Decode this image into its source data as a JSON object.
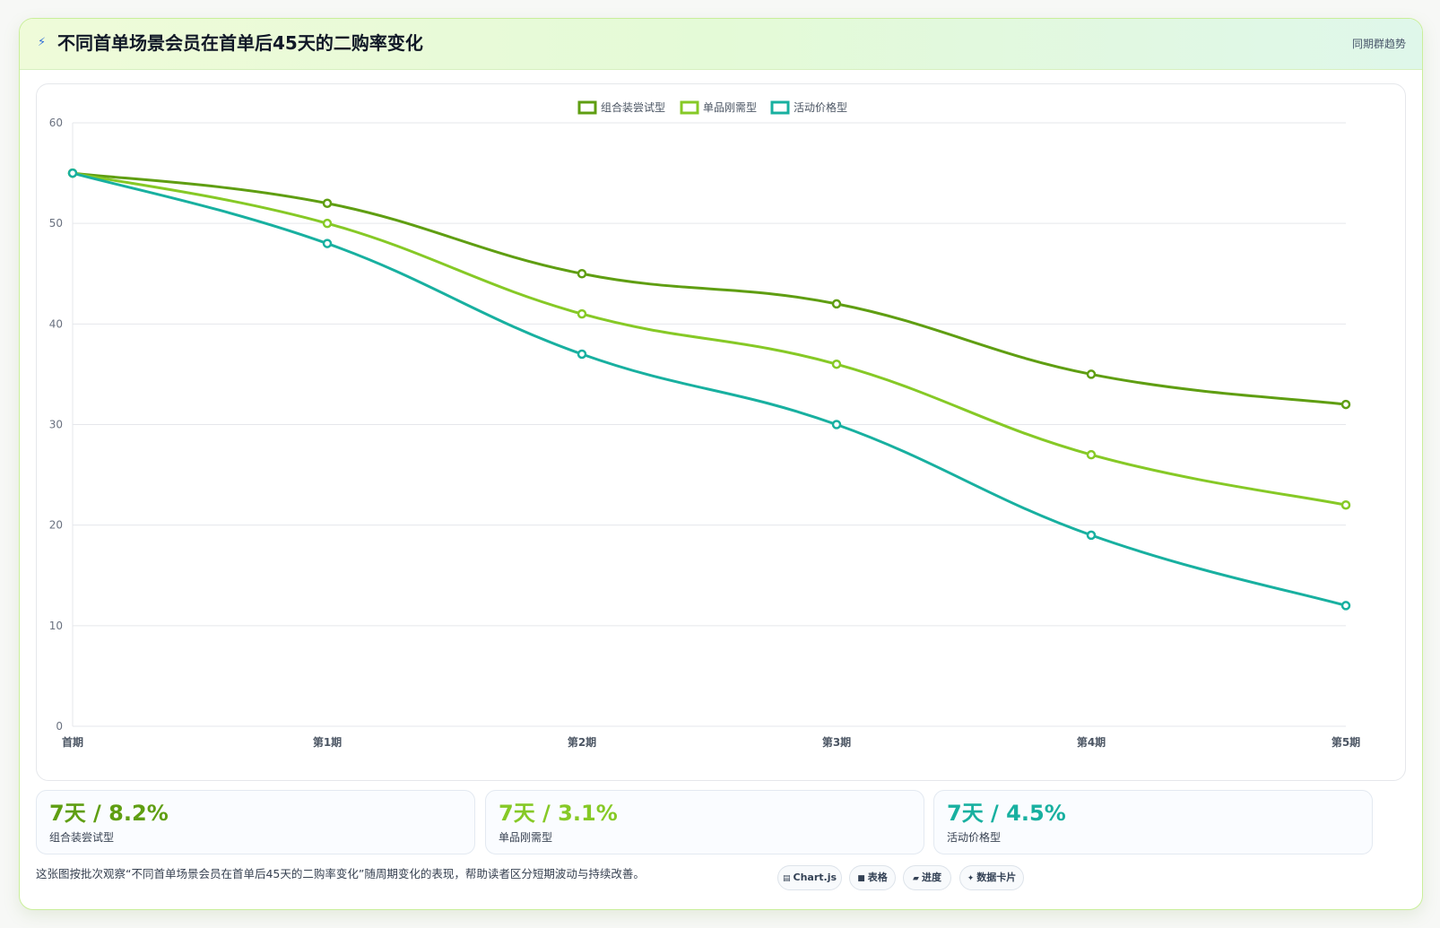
{
  "header": {
    "icon": "lightning-icon",
    "title": "不同首单场景会员在首单后45天的二购率变化",
    "tag": "同期群趋势"
  },
  "colors": {
    "series1": "#5f9e12",
    "series2": "#86c926",
    "series3": "#18b0a0",
    "grid": "#e5e7eb",
    "tick": "#6b7280"
  },
  "chart_data": {
    "type": "line",
    "categories": [
      "首期",
      "第1期",
      "第2期",
      "第3期",
      "第4期",
      "第5期"
    ],
    "series": [
      {
        "name": "组合装尝试型",
        "values": [
          55,
          52,
          45,
          42,
          35,
          32
        ]
      },
      {
        "name": "单品刚需型",
        "values": [
          55,
          50,
          41,
          36,
          27,
          22
        ]
      },
      {
        "name": "活动价格型",
        "values": [
          55,
          48,
          37,
          30,
          19,
          12
        ]
      }
    ],
    "ylim": [
      0,
      60
    ],
    "yticks": [
      0,
      10,
      20,
      30,
      40,
      50,
      60
    ],
    "grid": true,
    "legend": "top-center",
    "curve": "smooth"
  },
  "kpis": [
    {
      "value": "7天 / 8.2%",
      "label": "组合装尝试型",
      "color": "#5f9e12"
    },
    {
      "value": "7天 / 3.1%",
      "label": "单品刚需型",
      "color": "#86c926"
    },
    {
      "value": "7天 / 4.5%",
      "label": "活动价格型",
      "color": "#18b0a0"
    }
  ],
  "note": "这张图按批次观察“不同首单场景会员在首单后45天的二购率变化”随周期变化的表现，帮助读者区分短期波动与持续改善。",
  "pills": [
    {
      "icon": "chart-icon",
      "glyph": "▤",
      "label": "Chart.js"
    },
    {
      "icon": "table-icon",
      "glyph": "■",
      "label": "表格"
    },
    {
      "icon": "progress-icon",
      "glyph": "▰",
      "label": "进度"
    },
    {
      "icon": "sparkle-icon",
      "glyph": "✦",
      "label": "数据卡片"
    }
  ]
}
